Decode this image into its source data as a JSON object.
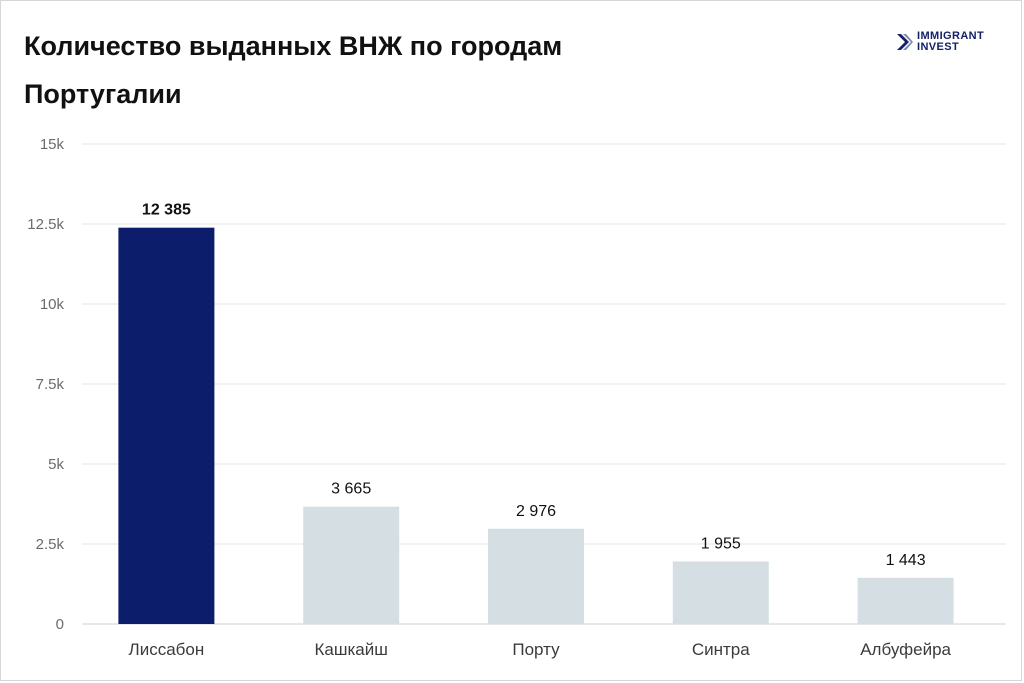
{
  "logo": {
    "line1": "IMMIGRANT",
    "line2": "INVEST",
    "color": "#13206a"
  },
  "chart_data": {
    "type": "bar",
    "title": "Количество выданных ВНЖ по городам Португалии",
    "xlabel": "",
    "ylabel": "",
    "categories": [
      "Лиссабон",
      "Кашкайш",
      "Порту",
      "Синтра",
      "Албуфейра"
    ],
    "values": [
      12385,
      3665,
      2976,
      1955,
      1443
    ],
    "value_labels": [
      "12 385",
      "3 665",
      "2 976",
      "1 955",
      "1 443"
    ],
    "ylim": [
      0,
      15000
    ],
    "yticks": [
      0,
      2500,
      5000,
      7500,
      10000,
      12500,
      15000
    ],
    "ytick_labels": [
      "0",
      "2.5k",
      "5k",
      "7.5k",
      "10k",
      "12.5k",
      "15k"
    ],
    "grid": true,
    "legend": "none",
    "highlight_index": 0,
    "colors": {
      "highlight": "#0c1d6b",
      "default": "#d5dfe3",
      "grid": "#e6e6e6",
      "axis": "#cfcfcf"
    }
  }
}
